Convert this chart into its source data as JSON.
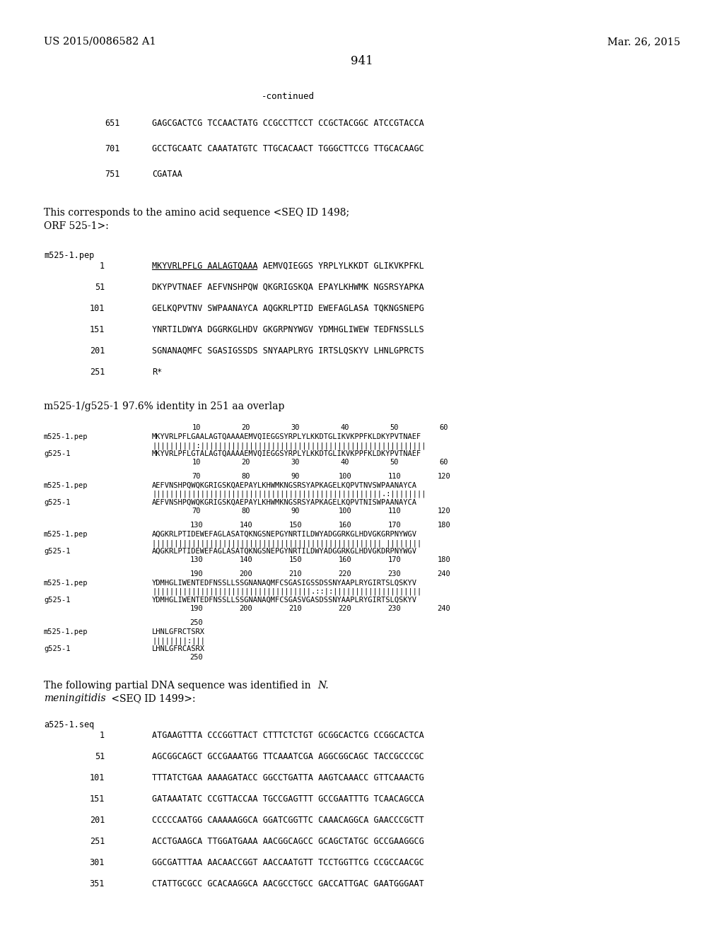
{
  "page_left": "US 2015/0086582 A1",
  "page_right": "Mar. 26, 2015",
  "page_num": "941",
  "bg_color": "#ffffff",
  "text_color": "#000000"
}
